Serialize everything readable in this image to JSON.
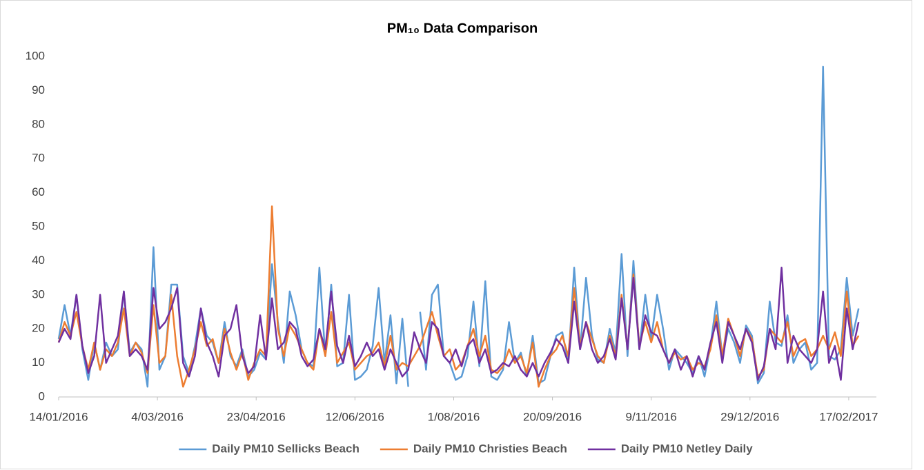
{
  "chart_data": {
    "type": "line",
    "title": "PM₁₀ Data Comparison",
    "x": [
      "14/01/2016",
      "17/01/2016",
      "20/01/2016",
      "23/01/2016",
      "26/01/2016",
      "29/01/2016",
      "1/02/2016",
      "4/02/2016",
      "7/02/2016",
      "10/02/2016",
      "13/02/2016",
      "16/02/2016",
      "19/02/2016",
      "22/02/2016",
      "25/02/2016",
      "28/02/2016",
      "2/03/2016",
      "5/03/2016",
      "8/03/2016",
      "11/03/2016",
      "14/03/2016",
      "17/03/2016",
      "20/03/2016",
      "23/03/2016",
      "26/03/2016",
      "29/03/2016",
      "1/04/2016",
      "4/04/2016",
      "7/04/2016",
      "10/04/2016",
      "13/04/2016",
      "16/04/2016",
      "19/04/2016",
      "22/04/2016",
      "25/04/2016",
      "28/04/2016",
      "1/05/2016",
      "4/05/2016",
      "7/05/2016",
      "10/05/2016",
      "13/05/2016",
      "16/05/2016",
      "19/05/2016",
      "22/05/2016",
      "25/05/2016",
      "28/05/2016",
      "31/05/2016",
      "3/06/2016",
      "6/06/2016",
      "9/06/2016",
      "12/06/2016",
      "15/06/2016",
      "18/06/2016",
      "21/06/2016",
      "24/06/2016",
      "27/06/2016",
      "30/06/2016",
      "3/07/2016",
      "6/07/2016",
      "9/07/2016",
      "12/07/2016",
      "15/07/2016",
      "18/07/2016",
      "21/07/2016",
      "24/07/2016",
      "27/07/2016",
      "30/07/2016",
      "2/08/2016",
      "5/08/2016",
      "8/08/2016",
      "11/08/2016",
      "14/08/2016",
      "17/08/2016",
      "20/08/2016",
      "23/08/2016",
      "26/08/2016",
      "29/08/2016",
      "1/09/2016",
      "4/09/2016",
      "7/09/2016",
      "10/09/2016",
      "13/09/2016",
      "16/09/2016",
      "19/09/2016",
      "22/09/2016",
      "25/09/2016",
      "28/09/2016",
      "1/10/2016",
      "4/10/2016",
      "7/10/2016",
      "10/10/2016",
      "13/10/2016",
      "16/10/2016",
      "19/10/2016",
      "22/10/2016",
      "25/10/2016",
      "28/10/2016",
      "31/10/2016",
      "3/11/2016",
      "6/11/2016",
      "9/11/2016",
      "12/11/2016",
      "15/11/2016",
      "18/11/2016",
      "21/11/2016",
      "24/11/2016",
      "27/11/2016",
      "30/11/2016",
      "3/12/2016",
      "6/12/2016",
      "9/12/2016",
      "12/12/2016",
      "15/12/2016",
      "18/12/2016",
      "21/12/2016",
      "24/12/2016",
      "27/12/2016",
      "30/12/2016",
      "2/01/2017",
      "5/01/2017",
      "8/01/2017",
      "11/01/2017",
      "14/01/2017",
      "17/01/2017",
      "20/01/2017",
      "23/01/2017",
      "26/01/2017",
      "29/01/2017",
      "1/02/2017",
      "4/02/2017",
      "7/02/2017",
      "10/02/2017",
      "13/02/2017",
      "16/02/2017",
      "19/02/2017",
      "22/02/2017"
    ],
    "series": [
      {
        "name": "Daily PM10 Sellicks Beach",
        "color": "#5b9bd5",
        "values": [
          17,
          27,
          18,
          30,
          14,
          5,
          16,
          8,
          16,
          12,
          14,
          31,
          13,
          16,
          14,
          3,
          44,
          8,
          12,
          33,
          33,
          12,
          7,
          15,
          26,
          18,
          16,
          10,
          22,
          12,
          9,
          14,
          6,
          8,
          13,
          11,
          39,
          22,
          10,
          31,
          24,
          14,
          10,
          9,
          38,
          12,
          33,
          9,
          10,
          30,
          5,
          6,
          8,
          15,
          32,
          10,
          24,
          4,
          23,
          3,
          null,
          25,
          8,
          30,
          33,
          12,
          10,
          5,
          6,
          12,
          28,
          9,
          34,
          6,
          5,
          8,
          22,
          10,
          13,
          6,
          18,
          4,
          5,
          12,
          18,
          19,
          10,
          38,
          14,
          35,
          18,
          11,
          10,
          20,
          13,
          42,
          12,
          40,
          14,
          30,
          17,
          30,
          20,
          8,
          14,
          12,
          10,
          7,
          12,
          6,
          15,
          28,
          12,
          20,
          16,
          10,
          21,
          18,
          4,
          7,
          28,
          16,
          15,
          24,
          10,
          14,
          16,
          8,
          10,
          97,
          12,
          11,
          14,
          35,
          18,
          26
        ]
      },
      {
        "name": "Daily PM10 Christies Beach",
        "color": "#ed7d31",
        "values": [
          16,
          22,
          18,
          25,
          15,
          8,
          16,
          8,
          14,
          12,
          16,
          26,
          12,
          16,
          13,
          7,
          27,
          10,
          12,
          30,
          12,
          3,
          8,
          14,
          22,
          15,
          17,
          10,
          20,
          13,
          8,
          13,
          5,
          10,
          14,
          12,
          56,
          20,
          12,
          21,
          18,
          14,
          10,
          8,
          20,
          12,
          25,
          10,
          13,
          16,
          8,
          10,
          12,
          13,
          16,
          9,
          18,
          8,
          10,
          9,
          12,
          15,
          20,
          25,
          18,
          12,
          14,
          8,
          10,
          15,
          20,
          12,
          18,
          8,
          7,
          9,
          14,
          10,
          12,
          7,
          16,
          3,
          8,
          12,
          14,
          18,
          12,
          32,
          15,
          22,
          17,
          12,
          10,
          18,
          12,
          30,
          14,
          36,
          15,
          22,
          16,
          22,
          14,
          10,
          13,
          11,
          12,
          8,
          10,
          9,
          14,
          24,
          12,
          23,
          18,
          12,
          20,
          17,
          6,
          8,
          20,
          18,
          16,
          22,
          12,
          16,
          17,
          12,
          14,
          18,
          14,
          19,
          12,
          31,
          15,
          18
        ]
      },
      {
        "name": "Daily PM10 Netley Daily",
        "color": "#7030a0",
        "values": [
          16,
          20,
          17,
          30,
          15,
          7,
          12,
          30,
          10,
          14,
          18,
          31,
          12,
          14,
          12,
          8,
          32,
          20,
          22,
          26,
          32,
          10,
          6,
          12,
          26,
          16,
          12,
          6,
          18,
          20,
          27,
          12,
          7,
          9,
          24,
          11,
          29,
          14,
          16,
          22,
          20,
          12,
          9,
          11,
          20,
          14,
          31,
          15,
          10,
          18,
          9,
          12,
          16,
          12,
          14,
          8,
          14,
          10,
          6,
          8,
          19,
          14,
          10,
          22,
          20,
          12,
          10,
          14,
          9,
          15,
          17,
          10,
          14,
          7,
          8,
          10,
          9,
          12,
          8,
          6,
          10,
          6,
          10,
          13,
          17,
          15,
          10,
          28,
          14,
          22,
          14,
          10,
          12,
          17,
          11,
          29,
          14,
          35,
          14,
          24,
          19,
          18,
          14,
          10,
          14,
          8,
          12,
          6,
          12,
          8,
          16,
          22,
          10,
          22,
          18,
          14,
          20,
          16,
          5,
          9,
          20,
          14,
          38,
          10,
          18,
          14,
          12,
          10,
          14,
          31,
          10,
          15,
          5,
          26,
          14,
          22
        ]
      }
    ],
    "xlim": [
      "14/01/2016",
      "3/03/2017"
    ],
    "xticks": [
      "14/01/2016",
      "4/03/2016",
      "23/04/2016",
      "12/06/2016",
      "1/08/2016",
      "20/09/2016",
      "9/11/2016",
      "29/12/2016",
      "17/02/2017"
    ],
    "ylim": [
      0,
      100
    ],
    "yticks": [
      0,
      10,
      20,
      30,
      40,
      50,
      60,
      70,
      80,
      90,
      100
    ],
    "grid": false,
    "legend": "bottom"
  }
}
